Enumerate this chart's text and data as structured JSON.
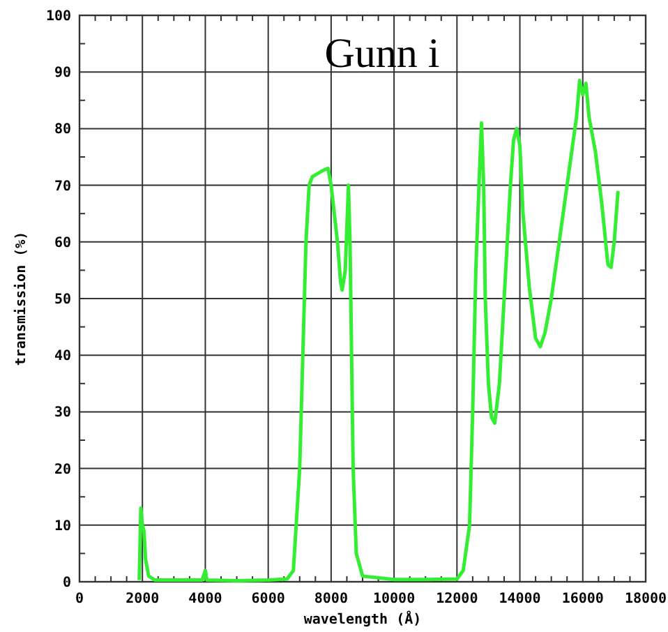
{
  "chart_data": {
    "type": "line",
    "title": "Gunn i",
    "xlabel": "wavelength (Å)",
    "ylabel": "transmission (%)",
    "xlim": [
      0,
      18000
    ],
    "ylim": [
      0,
      100
    ],
    "xticks": [
      0,
      2000,
      4000,
      6000,
      8000,
      10000,
      12000,
      14000,
      16000,
      18000
    ],
    "yticks": [
      0,
      10,
      20,
      30,
      40,
      50,
      60,
      70,
      80,
      90,
      100
    ],
    "grid": true,
    "marker": "none",
    "line_style": "solid",
    "series": [
      {
        "color": "#33ee33",
        "x": [
          1900,
          1950,
          2000,
          2050,
          2100,
          2200,
          2400,
          3000,
          3900,
          4000,
          4050,
          5000,
          6000,
          6600,
          6800,
          7000,
          7100,
          7200,
          7300,
          7400,
          7700,
          7900,
          8000,
          8200,
          8300,
          8350,
          8450,
          8550,
          8600,
          8650,
          8700,
          8800,
          9000,
          10000,
          11000,
          12000,
          12200,
          12400,
          12500,
          12600,
          12700,
          12780,
          12850,
          12900,
          13000,
          13100,
          13200,
          13350,
          13500,
          13700,
          13800,
          13900,
          14000,
          14100,
          14300,
          14500,
          14650,
          14800,
          15000,
          15300,
          15600,
          15800,
          15900,
          16000,
          16100,
          16200,
          16400,
          16600,
          16800,
          16900,
          17000,
          17120
        ],
        "values": [
          0.3,
          13,
          10,
          9,
          4,
          1,
          0.3,
          0.3,
          0.3,
          2,
          0.3,
          0.2,
          0.3,
          0.5,
          2,
          20,
          40,
          60,
          70,
          71.5,
          72.5,
          73,
          70,
          60,
          53,
          51.5,
          55,
          70,
          60,
          40,
          20,
          5,
          1,
          0.4,
          0.4,
          0.5,
          2,
          10,
          30,
          55,
          70,
          81,
          70,
          50,
          35,
          29,
          28,
          35,
          50,
          70,
          78,
          80,
          77,
          65,
          52,
          43,
          41.5,
          44,
          50,
          62,
          74,
          82,
          88.5,
          86,
          88,
          82,
          76,
          67,
          56,
          55.5,
          60,
          69
        ]
      }
    ]
  }
}
